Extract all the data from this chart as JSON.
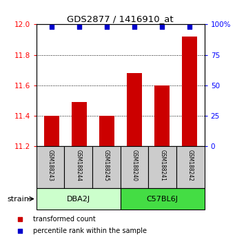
{
  "title": "GDS2877 / 1416910_at",
  "samples": [
    "GSM188243",
    "GSM188244",
    "GSM188245",
    "GSM188240",
    "GSM188241",
    "GSM188242"
  ],
  "bar_values": [
    11.4,
    11.49,
    11.4,
    11.68,
    11.6,
    11.92
  ],
  "percentile_values": [
    98,
    98,
    98,
    98,
    98,
    98
  ],
  "ylim_left": [
    11.2,
    12.0
  ],
  "ylim_right": [
    0,
    100
  ],
  "bar_color": "#CC0000",
  "dot_color": "#0000CC",
  "bar_bottom": 11.2,
  "groups": [
    {
      "label": "DBA2J",
      "indices": [
        0,
        1,
        2
      ],
      "color": "#CCFFCC"
    },
    {
      "label": "C57BL6J",
      "indices": [
        3,
        4,
        5
      ],
      "color": "#44DD44"
    }
  ],
  "legend_items": [
    {
      "color": "#CC0000",
      "label": "transformed count"
    },
    {
      "color": "#0000CC",
      "label": "percentile rank within the sample"
    }
  ],
  "yticks_left": [
    11.2,
    11.4,
    11.6,
    11.8,
    12.0
  ],
  "yticks_right": [
    0,
    25,
    50,
    75,
    100
  ],
  "background_color": "#ffffff",
  "sample_box_color": "#cccccc"
}
